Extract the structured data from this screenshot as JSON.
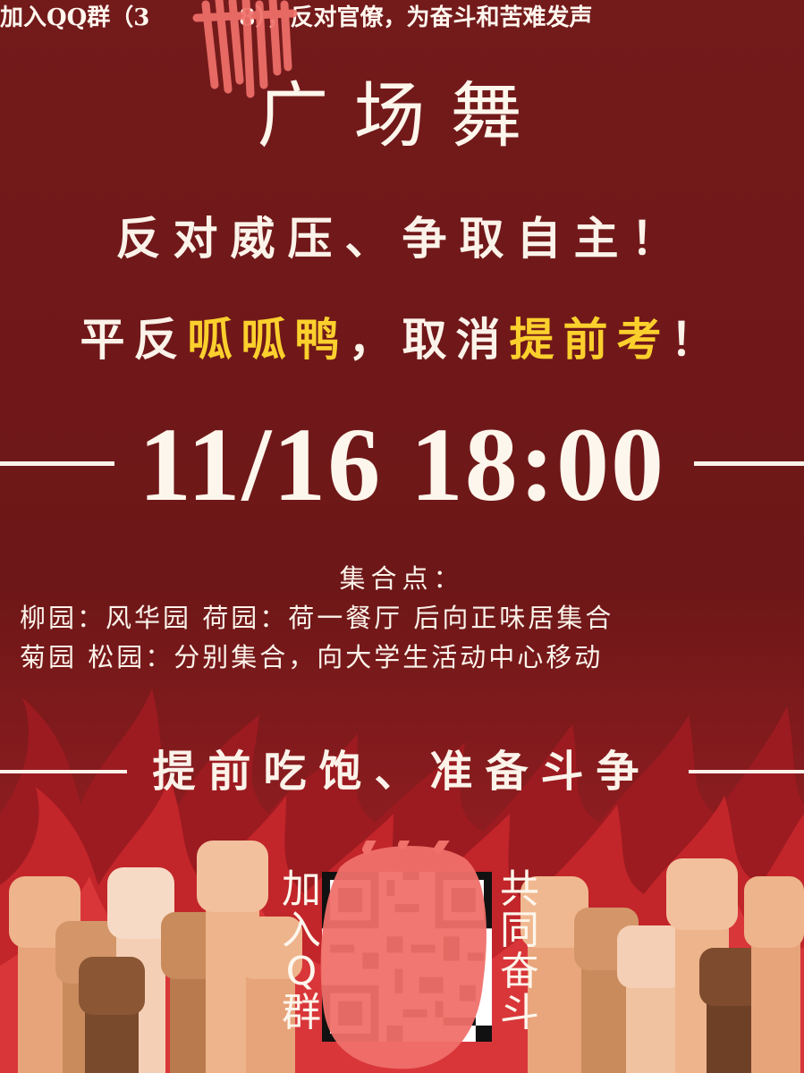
{
  "banner": {
    "text_before": "加入QQ群（3",
    "text_after": "8），反对官僚，为奋斗和苦难发声"
  },
  "title": "广场舞",
  "slogan1": "反对威压、争取自主！",
  "slogan2": {
    "part1": "平反",
    "hl1": "呱呱鸭",
    "part2": "，取消",
    "hl2": "提前考",
    "part3": "！"
  },
  "datetime": "11/16 18:00",
  "assembly": {
    "label": "集合点：",
    "line1": "柳园：风华园 荷园：荷一餐厅 后向正味居集合",
    "line2": "菊园 松园：分别集合，向大学生活动中心移动"
  },
  "motto": "提前吃饱、准备斗争",
  "join": {
    "left_text": "加入Q群",
    "right_text": "共同奋斗"
  },
  "colors": {
    "background": "#701819",
    "highlight": "#fbd02d",
    "text": "#fbf3ea",
    "redaction": "#f0706a"
  }
}
